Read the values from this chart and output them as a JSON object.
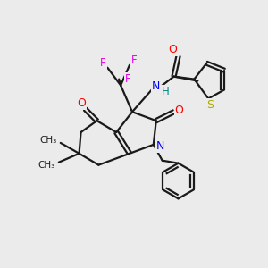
{
  "background_color": "#ebebeb",
  "bond_color": "#1a1a1a",
  "atom_colors": {
    "O": "#ff0000",
    "N": "#0000ee",
    "F": "#ee00ee",
    "S": "#aaaa00",
    "H": "#008888",
    "C": "#1a1a1a"
  },
  "figsize": [
    3.0,
    3.0
  ],
  "dpi": 100
}
